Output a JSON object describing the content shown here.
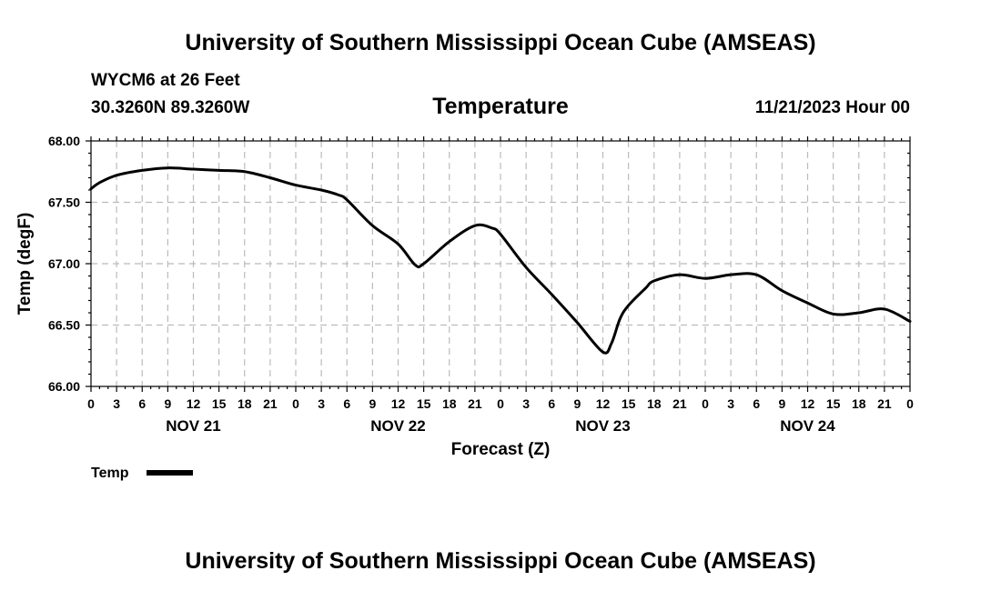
{
  "header": {
    "title": "University of Southern Mississippi Ocean Cube (AMSEAS)",
    "station": "WYCM6 at 26 Feet",
    "coords": "30.3260N  89.3260W",
    "variable": "Temperature",
    "datetime": "11/21/2023 Hour 00"
  },
  "footer": {
    "title": "University of Southern Mississippi Ocean Cube (AMSEAS)"
  },
  "chart_data": {
    "type": "line",
    "title": "Temperature",
    "xlabel": "Forecast (Z)",
    "ylabel": "Temp (degF)",
    "xlim": [
      0,
      96
    ],
    "ylim": [
      66.0,
      68.0
    ],
    "y_ticks": [
      "66.00",
      "66.50",
      "67.00",
      "67.50",
      "68.00"
    ],
    "x_tick_labels": [
      "0",
      "3",
      "6",
      "9",
      "12",
      "15",
      "18",
      "21",
      "0",
      "3",
      "6",
      "9",
      "12",
      "15",
      "18",
      "21",
      "0",
      "3",
      "6",
      "9",
      "12",
      "15",
      "18",
      "21",
      "0",
      "3",
      "6",
      "9",
      "12",
      "15",
      "18",
      "21",
      "0"
    ],
    "day_labels": [
      "NOV 21",
      "NOV 22",
      "NOV 23",
      "NOV 24"
    ],
    "grid": true,
    "legend": {
      "position": "bottom-left",
      "entries": [
        {
          "name": "Temp"
        }
      ]
    },
    "series": [
      {
        "name": "Temp",
        "color": "#000000",
        "x": [
          0,
          1,
          3,
          6,
          9,
          12,
          15,
          18,
          21,
          24,
          27,
          29,
          30,
          33,
          36,
          38,
          39,
          42,
          45,
          47,
          48,
          51,
          54,
          57,
          60,
          61,
          62,
          63,
          65,
          66,
          69,
          72,
          75,
          78,
          81,
          84,
          87,
          90,
          93,
          96
        ],
        "values": [
          67.61,
          67.66,
          67.72,
          67.76,
          67.78,
          67.77,
          67.76,
          67.75,
          67.7,
          67.64,
          67.6,
          67.56,
          67.52,
          67.31,
          67.16,
          66.99,
          67.0,
          67.18,
          67.31,
          67.29,
          67.24,
          66.97,
          66.75,
          66.52,
          66.28,
          66.35,
          66.55,
          66.66,
          66.8,
          66.86,
          66.91,
          66.88,
          66.91,
          66.91,
          66.78,
          66.68,
          66.59,
          66.6,
          66.63,
          66.53
        ]
      }
    ]
  }
}
